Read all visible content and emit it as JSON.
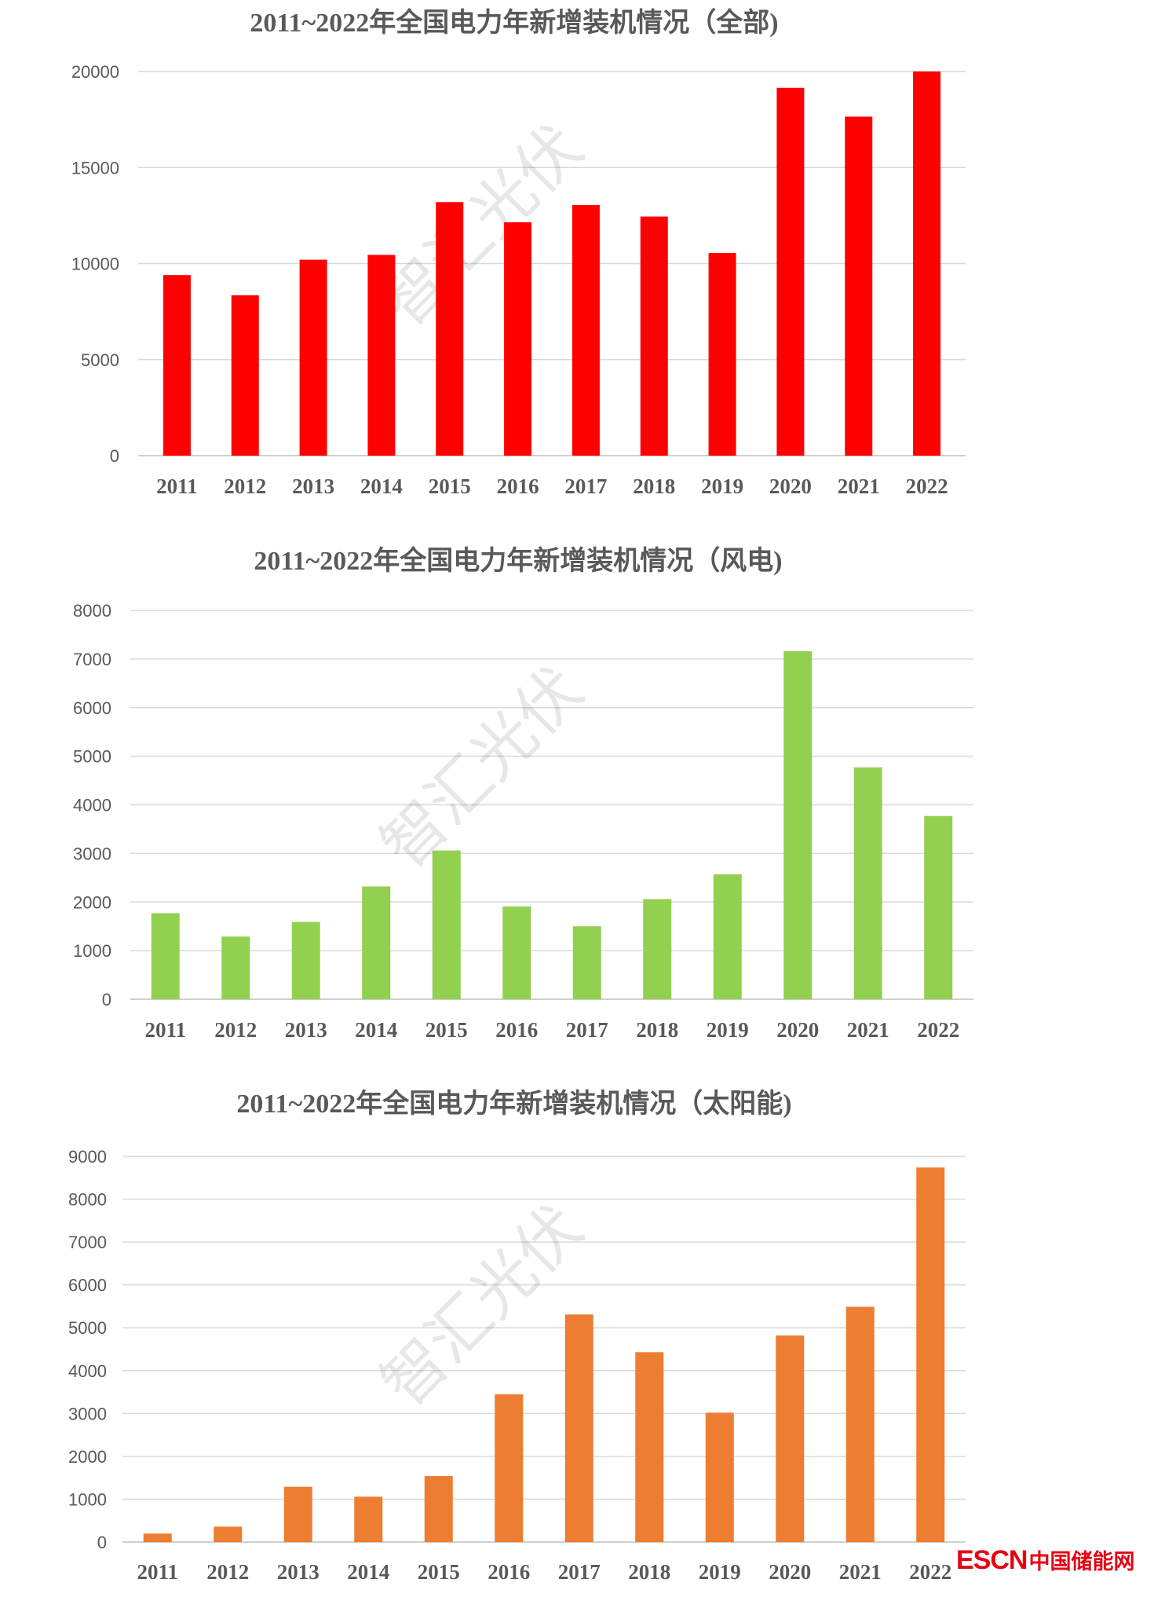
{
  "chart_data": [
    {
      "type": "bar",
      "title": "2011~2022年全国电力年新增装机情况（全部)",
      "categories": [
        "2011",
        "2012",
        "2013",
        "2014",
        "2015",
        "2016",
        "2017",
        "2018",
        "2019",
        "2020",
        "2021",
        "2022"
      ],
      "values": [
        9400,
        8350,
        10200,
        10450,
        13200,
        12150,
        13050,
        12450,
        10550,
        19150,
        17650,
        20000
      ],
      "ylim": [
        0,
        20000
      ],
      "yticks": [
        "0",
        "5000",
        "10000",
        "15000",
        "20000"
      ],
      "color": "#ff0000",
      "grid": true,
      "legend": "none"
    },
    {
      "type": "bar",
      "title": "2011~2022年全国电力年新增装机情况（风电)",
      "categories": [
        "2011",
        "2012",
        "2013",
        "2014",
        "2015",
        "2016",
        "2017",
        "2018",
        "2019",
        "2020",
        "2021",
        "2022"
      ],
      "values": [
        1770,
        1290,
        1590,
        2320,
        3060,
        1910,
        1500,
        2060,
        2570,
        7160,
        4770,
        3770
      ],
      "ylim": [
        0,
        8000
      ],
      "yticks": [
        "0",
        "1000",
        "2000",
        "3000",
        "4000",
        "5000",
        "6000",
        "7000",
        "8000"
      ],
      "color": "#92d050",
      "grid": true,
      "legend": "none"
    },
    {
      "type": "bar",
      "title": "2011~2022年全国电力年新增装机情况（太阳能)",
      "categories": [
        "2011",
        "2012",
        "2013",
        "2014",
        "2015",
        "2016",
        "2017",
        "2018",
        "2019",
        "2020",
        "2021",
        "2022"
      ],
      "values": [
        200,
        360,
        1290,
        1060,
        1540,
        3450,
        5310,
        4430,
        3020,
        4820,
        5490,
        8740
      ],
      "ylim": [
        0,
        9000
      ],
      "yticks": [
        "0",
        "1000",
        "2000",
        "3000",
        "4000",
        "5000",
        "6000",
        "7000",
        "8000",
        "9000"
      ],
      "color": "#ed7d31",
      "grid": true,
      "legend": "none"
    }
  ],
  "watermark": "智汇光伏",
  "logo": {
    "en": "ESCN",
    "cn": "中国储能网",
    "color": "#e60012"
  }
}
